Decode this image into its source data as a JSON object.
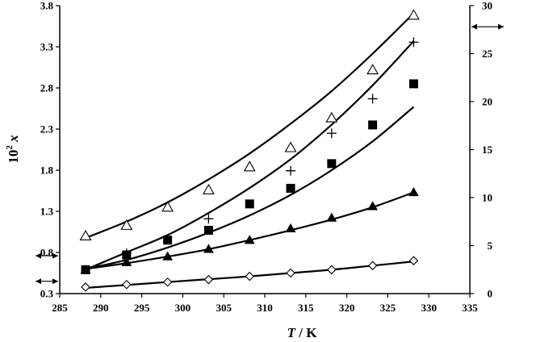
{
  "chart_data": {
    "type": "scatter",
    "title": "",
    "xlabel": {
      "italic": "T",
      "rest": " / K"
    },
    "ylabel": {
      "base": "10",
      "sup": "2",
      "var": "x"
    },
    "xlim": [
      285,
      335
    ],
    "ylim": [
      0.3,
      3.8
    ],
    "y2lim": [
      0,
      30
    ],
    "xticks": [
      "285",
      "290",
      "295",
      "300",
      "305",
      "310",
      "315",
      "320",
      "325",
      "330",
      "335"
    ],
    "yticks": [
      "0.3",
      "0.8",
      "1.3",
      "1.8",
      "2.3",
      "2.8",
      "3.3",
      "3.8"
    ],
    "y2ticks": [
      "0",
      "5",
      "10",
      "15",
      "20",
      "25",
      "30"
    ],
    "series": [
      {
        "marker": "open-triangle",
        "axis": "right",
        "x": [
          288.15,
          293.15,
          298.15,
          303.15,
          308.15,
          313.15,
          318.15,
          323.15,
          328.15
        ],
        "y": [
          6.0,
          7.1,
          9.0,
          10.8,
          13.2,
          15.2,
          18.3,
          23.3,
          29.0
        ],
        "fit": [
          5.8,
          7.5,
          9.5,
          11.9,
          14.6,
          17.7,
          21.1,
          25.0,
          29.2
        ]
      },
      {
        "marker": "plus",
        "axis": "right",
        "x": [
          293.15,
          303.15,
          313.15,
          318.15,
          323.15,
          328.15
        ],
        "y": [
          4.2,
          7.8,
          12.8,
          16.7,
          20.3,
          26.2
        ],
        "fit": [
          2.5,
          4.3,
          6.1,
          8.4,
          11.0,
          14.0,
          17.6,
          21.7,
          26.3
        ]
      },
      {
        "marker": "filled-square",
        "axis": "left",
        "x": [
          288.15,
          293.15,
          298.15,
          303.15,
          308.15,
          313.15,
          318.15,
          323.15,
          328.15
        ],
        "y": [
          0.59,
          0.77,
          0.95,
          1.07,
          1.39,
          1.58,
          1.88,
          2.35,
          2.85
        ],
        "fit": [
          0.6,
          0.71,
          0.86,
          1.04,
          1.25,
          1.5,
          1.8,
          2.15,
          2.57
        ]
      },
      {
        "marker": "filled-triangle",
        "axis": "left",
        "x": [
          288.15,
          293.15,
          298.15,
          303.15,
          308.15,
          313.15,
          318.15,
          323.15,
          328.15
        ],
        "y": [
          0.59,
          0.68,
          0.75,
          0.84,
          0.95,
          1.09,
          1.22,
          1.36,
          1.53
        ],
        "fit": [
          0.6,
          0.67,
          0.75,
          0.84,
          0.95,
          1.07,
          1.2,
          1.35,
          1.53
        ]
      },
      {
        "marker": "open-diamond",
        "axis": "left",
        "x": [
          288.15,
          293.15,
          298.15,
          303.15,
          308.15,
          313.15,
          318.15,
          323.15,
          328.15
        ],
        "y": [
          0.38,
          0.41,
          0.44,
          0.47,
          0.51,
          0.55,
          0.59,
          0.64,
          0.7
        ],
        "fit": [
          0.37,
          0.405,
          0.44,
          0.475,
          0.51,
          0.55,
          0.59,
          0.64,
          0.69
        ]
      }
    ],
    "axis_indicators": [
      {
        "axis": "right",
        "y": 27.8
      },
      {
        "axis": "left",
        "y": 0.76
      },
      {
        "axis": "left",
        "y": 0.45
      }
    ]
  }
}
